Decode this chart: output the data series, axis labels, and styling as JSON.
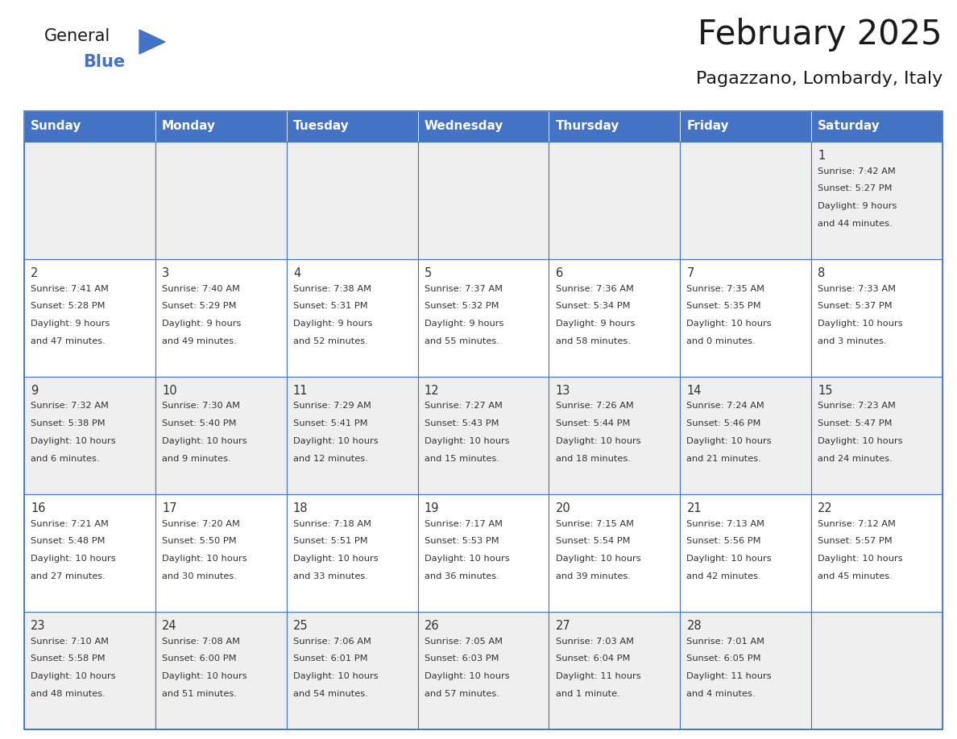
{
  "title": "February 2025",
  "subtitle": "Pagazzano, Lombardy, Italy",
  "header_bg": "#4472C4",
  "header_text_color": "#FFFFFF",
  "day_names": [
    "Sunday",
    "Monday",
    "Tuesday",
    "Wednesday",
    "Thursday",
    "Friday",
    "Saturday"
  ],
  "cell_bg_even": "#EFEFEF",
  "cell_bg_odd": "#FFFFFF",
  "cell_border_color": "#4472C4",
  "day_num_color": "#333333",
  "info_text_color": "#333333",
  "title_color": "#1a1a1a",
  "subtitle_color": "#1a1a1a",
  "logo_general_color": "#1a1a1a",
  "logo_blue_color": "#4472C4",
  "logo_triangle_color": "#4472C4",
  "weeks": [
    [
      {
        "day": null,
        "info": ""
      },
      {
        "day": null,
        "info": ""
      },
      {
        "day": null,
        "info": ""
      },
      {
        "day": null,
        "info": ""
      },
      {
        "day": null,
        "info": ""
      },
      {
        "day": null,
        "info": ""
      },
      {
        "day": 1,
        "info": "Sunrise: 7:42 AM\nSunset: 5:27 PM\nDaylight: 9 hours\nand 44 minutes."
      }
    ],
    [
      {
        "day": 2,
        "info": "Sunrise: 7:41 AM\nSunset: 5:28 PM\nDaylight: 9 hours\nand 47 minutes."
      },
      {
        "day": 3,
        "info": "Sunrise: 7:40 AM\nSunset: 5:29 PM\nDaylight: 9 hours\nand 49 minutes."
      },
      {
        "day": 4,
        "info": "Sunrise: 7:38 AM\nSunset: 5:31 PM\nDaylight: 9 hours\nand 52 minutes."
      },
      {
        "day": 5,
        "info": "Sunrise: 7:37 AM\nSunset: 5:32 PM\nDaylight: 9 hours\nand 55 minutes."
      },
      {
        "day": 6,
        "info": "Sunrise: 7:36 AM\nSunset: 5:34 PM\nDaylight: 9 hours\nand 58 minutes."
      },
      {
        "day": 7,
        "info": "Sunrise: 7:35 AM\nSunset: 5:35 PM\nDaylight: 10 hours\nand 0 minutes."
      },
      {
        "day": 8,
        "info": "Sunrise: 7:33 AM\nSunset: 5:37 PM\nDaylight: 10 hours\nand 3 minutes."
      }
    ],
    [
      {
        "day": 9,
        "info": "Sunrise: 7:32 AM\nSunset: 5:38 PM\nDaylight: 10 hours\nand 6 minutes."
      },
      {
        "day": 10,
        "info": "Sunrise: 7:30 AM\nSunset: 5:40 PM\nDaylight: 10 hours\nand 9 minutes."
      },
      {
        "day": 11,
        "info": "Sunrise: 7:29 AM\nSunset: 5:41 PM\nDaylight: 10 hours\nand 12 minutes."
      },
      {
        "day": 12,
        "info": "Sunrise: 7:27 AM\nSunset: 5:43 PM\nDaylight: 10 hours\nand 15 minutes."
      },
      {
        "day": 13,
        "info": "Sunrise: 7:26 AM\nSunset: 5:44 PM\nDaylight: 10 hours\nand 18 minutes."
      },
      {
        "day": 14,
        "info": "Sunrise: 7:24 AM\nSunset: 5:46 PM\nDaylight: 10 hours\nand 21 minutes."
      },
      {
        "day": 15,
        "info": "Sunrise: 7:23 AM\nSunset: 5:47 PM\nDaylight: 10 hours\nand 24 minutes."
      }
    ],
    [
      {
        "day": 16,
        "info": "Sunrise: 7:21 AM\nSunset: 5:48 PM\nDaylight: 10 hours\nand 27 minutes."
      },
      {
        "day": 17,
        "info": "Sunrise: 7:20 AM\nSunset: 5:50 PM\nDaylight: 10 hours\nand 30 minutes."
      },
      {
        "day": 18,
        "info": "Sunrise: 7:18 AM\nSunset: 5:51 PM\nDaylight: 10 hours\nand 33 minutes."
      },
      {
        "day": 19,
        "info": "Sunrise: 7:17 AM\nSunset: 5:53 PM\nDaylight: 10 hours\nand 36 minutes."
      },
      {
        "day": 20,
        "info": "Sunrise: 7:15 AM\nSunset: 5:54 PM\nDaylight: 10 hours\nand 39 minutes."
      },
      {
        "day": 21,
        "info": "Sunrise: 7:13 AM\nSunset: 5:56 PM\nDaylight: 10 hours\nand 42 minutes."
      },
      {
        "day": 22,
        "info": "Sunrise: 7:12 AM\nSunset: 5:57 PM\nDaylight: 10 hours\nand 45 minutes."
      }
    ],
    [
      {
        "day": 23,
        "info": "Sunrise: 7:10 AM\nSunset: 5:58 PM\nDaylight: 10 hours\nand 48 minutes."
      },
      {
        "day": 24,
        "info": "Sunrise: 7:08 AM\nSunset: 6:00 PM\nDaylight: 10 hours\nand 51 minutes."
      },
      {
        "day": 25,
        "info": "Sunrise: 7:06 AM\nSunset: 6:01 PM\nDaylight: 10 hours\nand 54 minutes."
      },
      {
        "day": 26,
        "info": "Sunrise: 7:05 AM\nSunset: 6:03 PM\nDaylight: 10 hours\nand 57 minutes."
      },
      {
        "day": 27,
        "info": "Sunrise: 7:03 AM\nSunset: 6:04 PM\nDaylight: 11 hours\nand 1 minute."
      },
      {
        "day": 28,
        "info": "Sunrise: 7:01 AM\nSunset: 6:05 PM\nDaylight: 11 hours\nand 4 minutes."
      },
      {
        "day": null,
        "info": ""
      }
    ]
  ]
}
